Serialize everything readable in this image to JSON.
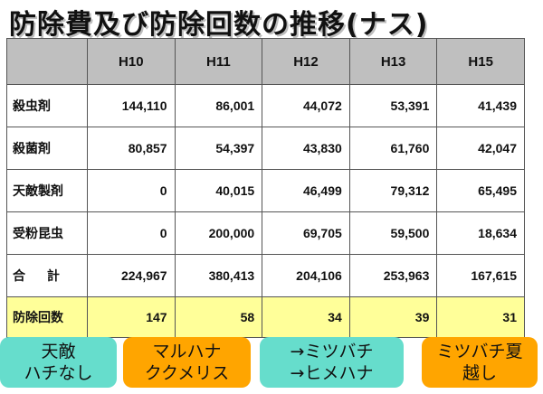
{
  "title": "防除費及び防除回数の推移(ナス)",
  "table": {
    "columns": [
      "",
      "H10",
      "H11",
      "H12",
      "H13",
      "H15"
    ],
    "rows": [
      {
        "label": "殺虫剤",
        "values": [
          "144,110",
          "86,001",
          "44,072",
          "53,391",
          "41,439"
        ]
      },
      {
        "label": "殺菌剤",
        "values": [
          "80,857",
          "54,397",
          "43,830",
          "61,760",
          "42,047"
        ]
      },
      {
        "label": "天敵製剤",
        "values": [
          "0",
          "40,015",
          "46,499",
          "79,312",
          "65,495"
        ]
      },
      {
        "label": "受粉昆虫",
        "values": [
          "0",
          "200,000",
          "69,705",
          "59,500",
          "18,634"
        ]
      },
      {
        "label": "合 計",
        "values": [
          "224,967",
          "380,413",
          "204,106",
          "253,963",
          "167,615"
        ]
      },
      {
        "label": "防除回数",
        "values": [
          "147",
          "58",
          "34",
          "39",
          "31"
        ]
      }
    ]
  },
  "notes": [
    {
      "line1": "天敵",
      "line2": "ハチなし",
      "color": "#66ddcc"
    },
    {
      "line1": "マルハナ",
      "line2": "ククメリス",
      "color": "#ffa500"
    },
    {
      "line1": "→ミツバチ",
      "line2": "→ヒメハナ",
      "color": "#66ddcc"
    },
    {
      "line1": "ミツバチ夏",
      "line2": "越し",
      "color": "#ffa500"
    }
  ]
}
